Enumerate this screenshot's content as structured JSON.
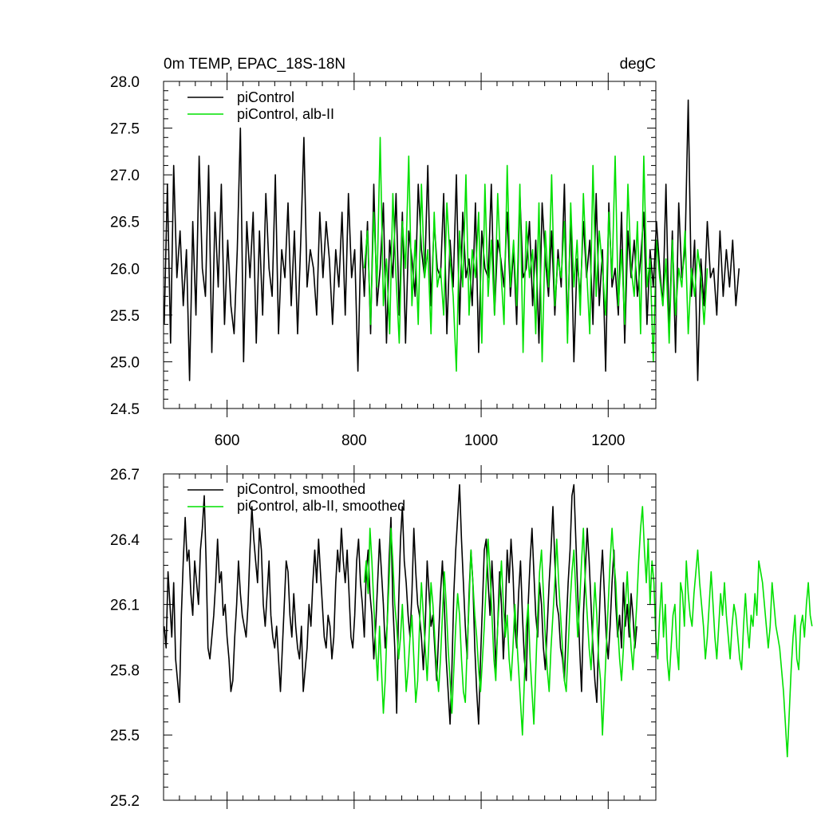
{
  "chart_data": [
    {
      "type": "line",
      "title": "0m TEMP, EPAC_18S-18N",
      "units": "degC",
      "xlim": [
        500,
        1275
      ],
      "ylim": [
        24.5,
        28.0
      ],
      "x_ticks": [
        600,
        800,
        1000,
        1200
      ],
      "x_tick_labels": [
        "600",
        "800",
        "1000",
        "1200"
      ],
      "y_ticks": [
        24.5,
        25.0,
        25.5,
        26.0,
        26.5,
        27.0,
        27.5,
        28.0
      ],
      "y_tick_labels": [
        "24.5",
        "25.0",
        "25.5",
        "26.0",
        "26.5",
        "27.0",
        "27.5",
        "28.0"
      ],
      "grid": false,
      "legend_position": "top-left",
      "series": [
        {
          "name": "piControl",
          "color": "#000000",
          "x_start": 501,
          "x_step": 5,
          "values": [
            25.4,
            26.9,
            25.2,
            27.1,
            25.9,
            26.4,
            25.6,
            26.2,
            24.8,
            26.5,
            25.5,
            27.2,
            26.0,
            25.7,
            27.1,
            25.1,
            26.6,
            25.8,
            26.9,
            25.4,
            26.3,
            25.6,
            25.3,
            26.2,
            27.5,
            25.0,
            26.5,
            25.9,
            26.6,
            25.2,
            26.4,
            25.5,
            26.8,
            26.0,
            25.7,
            27.0,
            25.3,
            26.2,
            25.9,
            26.7,
            25.6,
            26.4,
            25.3,
            26.3,
            27.4,
            25.8,
            26.2,
            26.0,
            25.5,
            26.6,
            25.9,
            26.5,
            26.1,
            25.4,
            26.2,
            25.8,
            26.6,
            25.5,
            26.8,
            25.9,
            26.2,
            24.9,
            26.4,
            25.7,
            26.5,
            25.3,
            26.9,
            25.6,
            26.0,
            26.7,
            25.2,
            26.3,
            25.9,
            26.8,
            25.5,
            26.6,
            25.2,
            26.4,
            26.1,
            25.7,
            26.9,
            26.2,
            25.9,
            27.1,
            25.6,
            26.5,
            26.0,
            25.9,
            26.8,
            25.3,
            26.3,
            25.8,
            27.0,
            25.4,
            26.6,
            25.9,
            26.1,
            25.6,
            26.7,
            25.1,
            26.4,
            26.0,
            25.9,
            26.9,
            25.5,
            26.3,
            26.1,
            25.8,
            26.6,
            25.7,
            26.2,
            25.4,
            26.8,
            25.9,
            26.0,
            26.5,
            25.6,
            26.3,
            25.2,
            26.7,
            26.1,
            25.7,
            26.4,
            25.5,
            26.2,
            25.8,
            26.9,
            25.3,
            26.6,
            25.0,
            26.1,
            25.7,
            26.5,
            25.9,
            26.3,
            25.4,
            26.8,
            25.6,
            26.2,
            24.9,
            26.7,
            25.8,
            26.0,
            25.5,
            26.6,
            25.2,
            26.4,
            25.9,
            26.3,
            25.7,
            26.1,
            26.6,
            25.4,
            26.2,
            25.8,
            26.5,
            26.0,
            25.6,
            26.9,
            25.3,
            26.4,
            25.1,
            26.7,
            25.9,
            26.2,
            27.8,
            25.7,
            26.3,
            24.8,
            26.1,
            25.6,
            26.5,
            25.9,
            26.0,
            25.5,
            26.4,
            25.7,
            26.2,
            25.8,
            26.3,
            25.6,
            26.0
          ]
        },
        {
          "name": "piControl, alb-II",
          "color": "#00e000",
          "x_start": 816,
          "x_step": 5,
          "values": [
            26.0,
            26.4,
            25.4,
            26.6,
            25.8,
            27.4,
            25.6,
            26.1,
            25.3,
            26.8,
            25.9,
            25.2,
            26.5,
            26.0,
            27.2,
            25.6,
            26.3,
            25.4,
            26.9,
            25.9,
            26.2,
            25.3,
            26.6,
            25.8,
            26.0,
            25.5,
            26.7,
            26.1,
            25.7,
            24.9,
            26.4,
            25.8,
            27.0,
            25.5,
            26.2,
            25.9,
            26.6,
            25.2,
            26.9,
            25.7,
            26.3,
            25.5,
            26.8,
            26.0,
            25.4,
            27.1,
            25.8,
            26.3,
            25.6,
            26.9,
            25.1,
            26.5,
            25.9,
            26.2,
            25.3,
            26.7,
            25.0,
            26.4,
            25.8,
            27.0,
            25.6,
            26.1,
            25.9,
            26.5,
            25.2,
            26.7,
            25.8,
            26.3,
            25.5,
            26.8,
            26.0,
            25.3,
            27.1,
            25.7,
            26.4,
            26.0,
            25.5,
            26.6,
            25.9,
            27.2,
            25.6,
            26.2,
            25.4,
            26.9,
            26.0,
            25.7,
            26.5,
            25.3,
            27.2,
            25.8,
            26.1,
            25.0,
            26.3,
            25.9,
            25.6,
            26.1,
            25.2,
            26.3,
            25.5,
            26.0,
            25.8,
            26.4,
            25.3,
            26.0,
            25.7,
            26.2,
            25.9,
            25.4,
            26.0
          ]
        }
      ]
    },
    {
      "type": "line",
      "xlim": [
        500,
        1275
      ],
      "ylim": [
        25.2,
        26.7
      ],
      "x_ticks": [
        600,
        800,
        1000,
        1200
      ],
      "y_ticks": [
        25.2,
        25.5,
        25.8,
        26.1,
        26.4,
        26.7
      ],
      "y_tick_labels": [
        "25.2",
        "25.5",
        "25.8",
        "26.1",
        "26.4",
        "26.7"
      ],
      "grid": false,
      "legend_position": "top-left",
      "series": [
        {
          "name": "piControl, smoothed",
          "color": "#000000",
          "x_start": 501,
          "x_step": 3,
          "values": [
            26.0,
            25.9,
            26.25,
            26.1,
            25.95,
            26.2,
            25.85,
            25.75,
            25.65,
            26.05,
            26.3,
            26.5,
            26.3,
            26.35,
            26.15,
            26.05,
            26.3,
            26.2,
            26.1,
            26.35,
            26.45,
            26.6,
            26.3,
            25.9,
            25.85,
            25.95,
            26.05,
            26.2,
            26.4,
            26.2,
            26.25,
            26.05,
            26.1,
            25.95,
            25.85,
            25.7,
            25.75,
            25.95,
            26.1,
            26.3,
            26.15,
            26.05,
            26.0,
            25.95,
            26.1,
            26.35,
            26.55,
            26.4,
            26.3,
            26.2,
            26.45,
            26.35,
            26.1,
            26.0,
            26.15,
            26.3,
            26.05,
            25.95,
            25.9,
            26.0,
            25.85,
            25.7,
            25.9,
            26.1,
            26.3,
            26.25,
            26.05,
            25.95,
            26.15,
            26.0,
            25.9,
            25.85,
            26.0,
            25.7,
            25.8,
            25.9,
            26.1,
            26.0,
            26.2,
            26.35,
            26.2,
            26.4,
            26.25,
            26.1,
            25.95,
            25.9,
            26.05,
            26.0,
            25.85,
            25.95,
            26.2,
            26.35,
            26.25,
            26.45,
            26.3,
            26.2,
            26.35,
            26.15,
            25.95,
            25.9,
            26.05,
            26.3,
            26.4,
            26.2,
            26.1,
            25.95,
            26.25,
            26.35,
            26.15,
            26.05,
            25.85,
            26.0,
            26.2,
            26.4,
            26.25,
            26.1,
            25.9,
            26.0,
            26.3,
            26.5,
            26.1,
            25.9,
            25.6,
            26.1,
            26.4,
            26.55,
            26.3,
            26.2,
            26.05,
            25.95,
            26.15,
            26.45,
            26.25,
            26.1,
            26.05,
            25.95,
            25.8,
            26.0,
            26.3,
            26.15,
            26.0,
            26.05,
            25.9,
            25.75,
            25.95,
            26.15,
            26.3,
            26.1,
            25.85,
            25.7,
            25.55,
            25.8,
            26.15,
            26.35,
            26.5,
            26.65,
            26.4,
            26.2,
            26.0,
            25.85,
            26.15,
            26.35,
            26.2,
            25.9,
            25.7,
            25.55,
            25.85,
            26.1,
            26.35,
            26.4,
            26.2,
            26.05,
            26.3,
            26.1,
            25.8,
            26.0,
            26.25,
            26.1,
            25.85,
            26.05,
            26.35,
            26.2,
            26.4,
            26.25,
            26.0,
            25.9,
            26.15,
            26.3,
            26.05,
            25.85,
            25.75,
            26.1,
            26.3,
            26.45,
            26.25,
            26.05,
            25.95,
            26.2,
            26.1,
            25.9,
            25.8,
            26.0,
            26.2,
            26.35,
            26.55,
            26.3,
            26.1,
            26.05,
            25.9,
            25.85,
            25.75,
            26.0,
            26.2,
            26.35,
            26.6,
            26.65,
            26.4,
            26.15,
            25.9,
            25.7,
            26.05,
            26.25,
            26.45,
            26.3,
            26.1,
            25.9,
            25.75,
            25.65,
            25.95,
            26.2,
            26.35,
            26.15,
            25.95,
            25.85,
            26.0,
            26.2,
            26.35,
            26.1,
            25.95,
            26.05,
            25.9,
            26.2,
            26.0,
            26.1,
            25.95,
            26.15,
            26.05,
            25.9,
            26.0
          ]
        },
        {
          "name": "piControl, alb-II, smoothed",
          "color": "#00e000",
          "x_start": 816,
          "x_step": 3,
          "values": [
            26.2,
            26.3,
            26.15,
            26.45,
            26.3,
            26.1,
            25.9,
            25.75,
            26.0,
            25.8,
            25.6,
            25.75,
            26.0,
            26.2,
            26.45,
            26.3,
            26.1,
            26.0,
            25.85,
            25.95,
            26.1,
            25.9,
            25.7,
            25.8,
            25.95,
            26.05,
            25.85,
            25.65,
            25.75,
            26.0,
            26.2,
            26.05,
            25.9,
            25.75,
            25.95,
            26.2,
            26.1,
            25.95,
            25.8,
            25.7,
            25.85,
            26.05,
            26.25,
            26.1,
            25.9,
            25.75,
            25.6,
            25.8,
            26.0,
            26.15,
            26.05,
            25.85,
            25.7,
            25.65,
            25.9,
            26.1,
            26.35,
            26.2,
            26.05,
            25.95,
            25.8,
            25.7,
            25.85,
            26.0,
            26.2,
            26.4,
            26.25,
            26.05,
            25.85,
            25.75,
            26.0,
            26.15,
            26.3,
            26.1,
            25.95,
            26.05,
            25.85,
            25.75,
            25.9,
            26.1,
            25.95,
            25.8,
            25.65,
            25.5,
            25.75,
            26.0,
            26.1,
            25.85,
            25.7,
            25.55,
            25.8,
            26.05,
            26.25,
            26.35,
            26.15,
            25.95,
            25.8,
            25.7,
            25.9,
            26.05,
            26.2,
            26.4,
            26.2,
            26.05,
            25.9,
            25.75,
            25.7,
            25.9,
            26.1,
            26.25,
            26.35,
            26.15,
            25.95,
            26.1,
            26.3,
            26.45,
            26.2,
            26.05,
            25.9,
            25.8,
            26.0,
            26.2,
            26.05,
            25.85,
            25.75,
            25.5,
            25.7,
            25.9,
            26.1,
            26.3,
            26.45,
            26.3,
            26.2,
            26.0,
            25.85,
            25.75,
            25.9,
            26.1,
            26.25,
            26.05,
            25.9,
            25.8,
            25.95,
            26.1,
            26.3,
            26.45,
            26.55,
            26.35,
            26.2,
            26.4,
            26.1,
            26.3,
            26.2,
            25.95,
            25.85,
            26.05,
            26.2,
            25.95,
            26.1,
            25.85,
            25.75,
            25.9,
            26.05,
            26.1,
            25.9,
            25.8,
            26.2,
            26.15,
            26.0,
            26.3,
            26.15,
            26.05,
            26.0,
            26.15,
            26.25,
            26.35,
            26.2,
            26.1,
            26.0,
            25.85,
            25.95,
            26.1,
            26.25,
            26.1,
            25.95,
            25.85,
            26.0,
            26.15,
            26.05,
            26.2,
            26.05,
            25.95,
            25.85,
            26.0,
            26.1,
            26.05,
            25.95,
            25.85,
            25.8,
            26.0,
            26.15,
            26.0,
            25.9,
            26.05,
            26.0,
            26.15,
            26.05,
            26.3,
            26.25,
            26.2,
            26.1,
            26.0,
            25.9,
            26.0,
            26.2,
            26.1,
            26.0,
            25.95,
            25.9,
            25.8,
            25.7,
            25.55,
            25.4,
            25.6,
            25.8,
            25.95,
            26.05,
            25.85,
            25.8,
            26.0,
            26.05,
            25.95,
            26.1,
            26.2,
            26.05,
            26.0
          ]
        }
      ]
    }
  ]
}
